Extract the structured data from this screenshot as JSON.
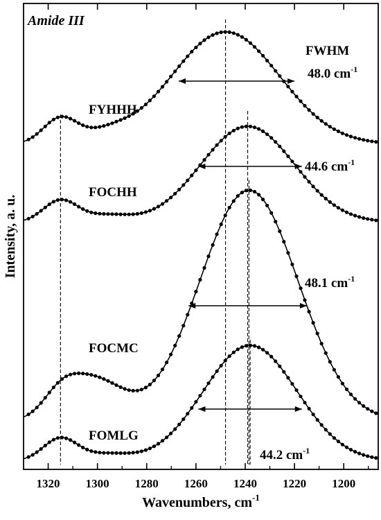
{
  "chart_data": {
    "type": "line",
    "title": "Amide III",
    "xlabel": "Wavenumbers, cm",
    "xlabel_sup": "-1",
    "ylabel": "Intensity, a. u.",
    "xlim": [
      1330,
      1186
    ],
    "x_reversed": true,
    "x_ticks": [
      1320,
      1300,
      1280,
      1260,
      1240,
      1220,
      1200
    ],
    "y_ticks_shown": false,
    "grid": false,
    "fwhm_header": "FWHM",
    "unit_text": "cm",
    "unit_sup": "-1",
    "peak_reference_lines": [
      1315,
      1248,
      1239,
      1238.5,
      1238
    ],
    "series": [
      {
        "name": "FYHHH",
        "baseline": 0,
        "components": [
          {
            "center": 1315,
            "amp": 0.92,
            "width": 7
          },
          {
            "center": 1296,
            "amp": 0.3,
            "width": 9
          },
          {
            "center": 1248,
            "amp": 4.05,
            "width": 22
          }
        ],
        "fwhm_value": "48.0",
        "fwhm_range": [
          1267,
          1220
        ]
      },
      {
        "name": "FOCHH",
        "baseline": 0,
        "components": [
          {
            "center": 1315,
            "amp": 0.8,
            "width": 7
          },
          {
            "center": 1296,
            "amp": 0.25,
            "width": 9
          },
          {
            "center": 1239,
            "amp": 3.47,
            "width": 19
          }
        ],
        "fwhm_value": "44.6",
        "fwhm_range": [
          1259,
          1217
        ]
      },
      {
        "name": "FOCMC",
        "baseline": 0,
        "components": [
          {
            "center": 1315,
            "amp": 0.55,
            "width": 7
          },
          {
            "center": 1302,
            "amp": 1.28,
            "width": 12
          },
          {
            "center": 1238.5,
            "amp": 7.1,
            "width": 20
          }
        ],
        "fwhm_value": "48.1",
        "fwhm_range": [
          1263,
          1215
        ]
      },
      {
        "name": "FOMLG",
        "baseline": 0,
        "components": [
          {
            "center": 1315,
            "amp": 0.7,
            "width": 7
          },
          {
            "center": 1296,
            "amp": 0.2,
            "width": 9
          },
          {
            "center": 1238,
            "amp": 3.55,
            "width": 19
          }
        ],
        "fwhm_value": "44.2",
        "fwhm_range": [
          1259,
          1217
        ]
      }
    ]
  }
}
